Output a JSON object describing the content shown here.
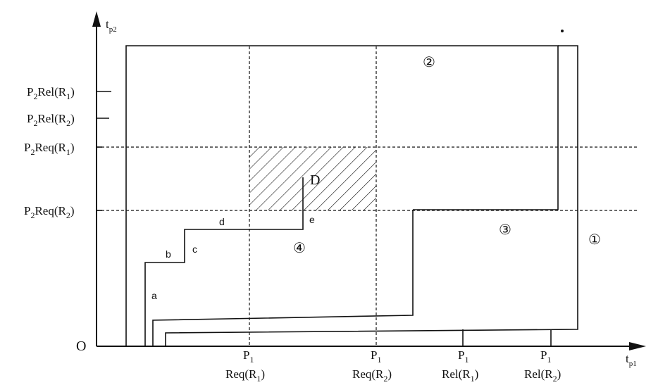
{
  "axes": {
    "origin": "O",
    "y_axis": {
      "base": "t",
      "sub": "p2"
    },
    "x_axis": {
      "base": "t",
      "sub": "p1"
    }
  },
  "y_labels": [
    {
      "a": "P",
      "s": "2",
      "b": "Rel(R",
      "s2": "1",
      "c": ")"
    },
    {
      "a": "P",
      "s": "2",
      "b": "Rel(R",
      "s2": "2",
      "c": ")"
    },
    {
      "a": "P",
      "s": "2",
      "b": "Req(R",
      "s2": "1",
      "c": ")"
    },
    {
      "a": "P",
      "s": "2",
      "b": "Req(R",
      "s2": "2",
      "c": ")"
    }
  ],
  "x_labels": [
    {
      "top": "P",
      "topsub": "1",
      "b": "Req(R",
      "s2": "1",
      "c": ")"
    },
    {
      "top": "P",
      "topsub": "1",
      "b": "Req(R",
      "s2": "2",
      "c": ")"
    },
    {
      "top": "P",
      "topsub": "1",
      "b": "Rel(R",
      "s2": "1",
      "c": ")"
    },
    {
      "top": "P",
      "topsub": "1",
      "b": "Rel(R",
      "s2": "2",
      "c": ")"
    }
  ],
  "path_labels": [
    "a",
    "b",
    "c",
    "d",
    "e"
  ],
  "deadlock_point": "D",
  "region_markers": [
    "②",
    "③",
    "①",
    "④"
  ]
}
